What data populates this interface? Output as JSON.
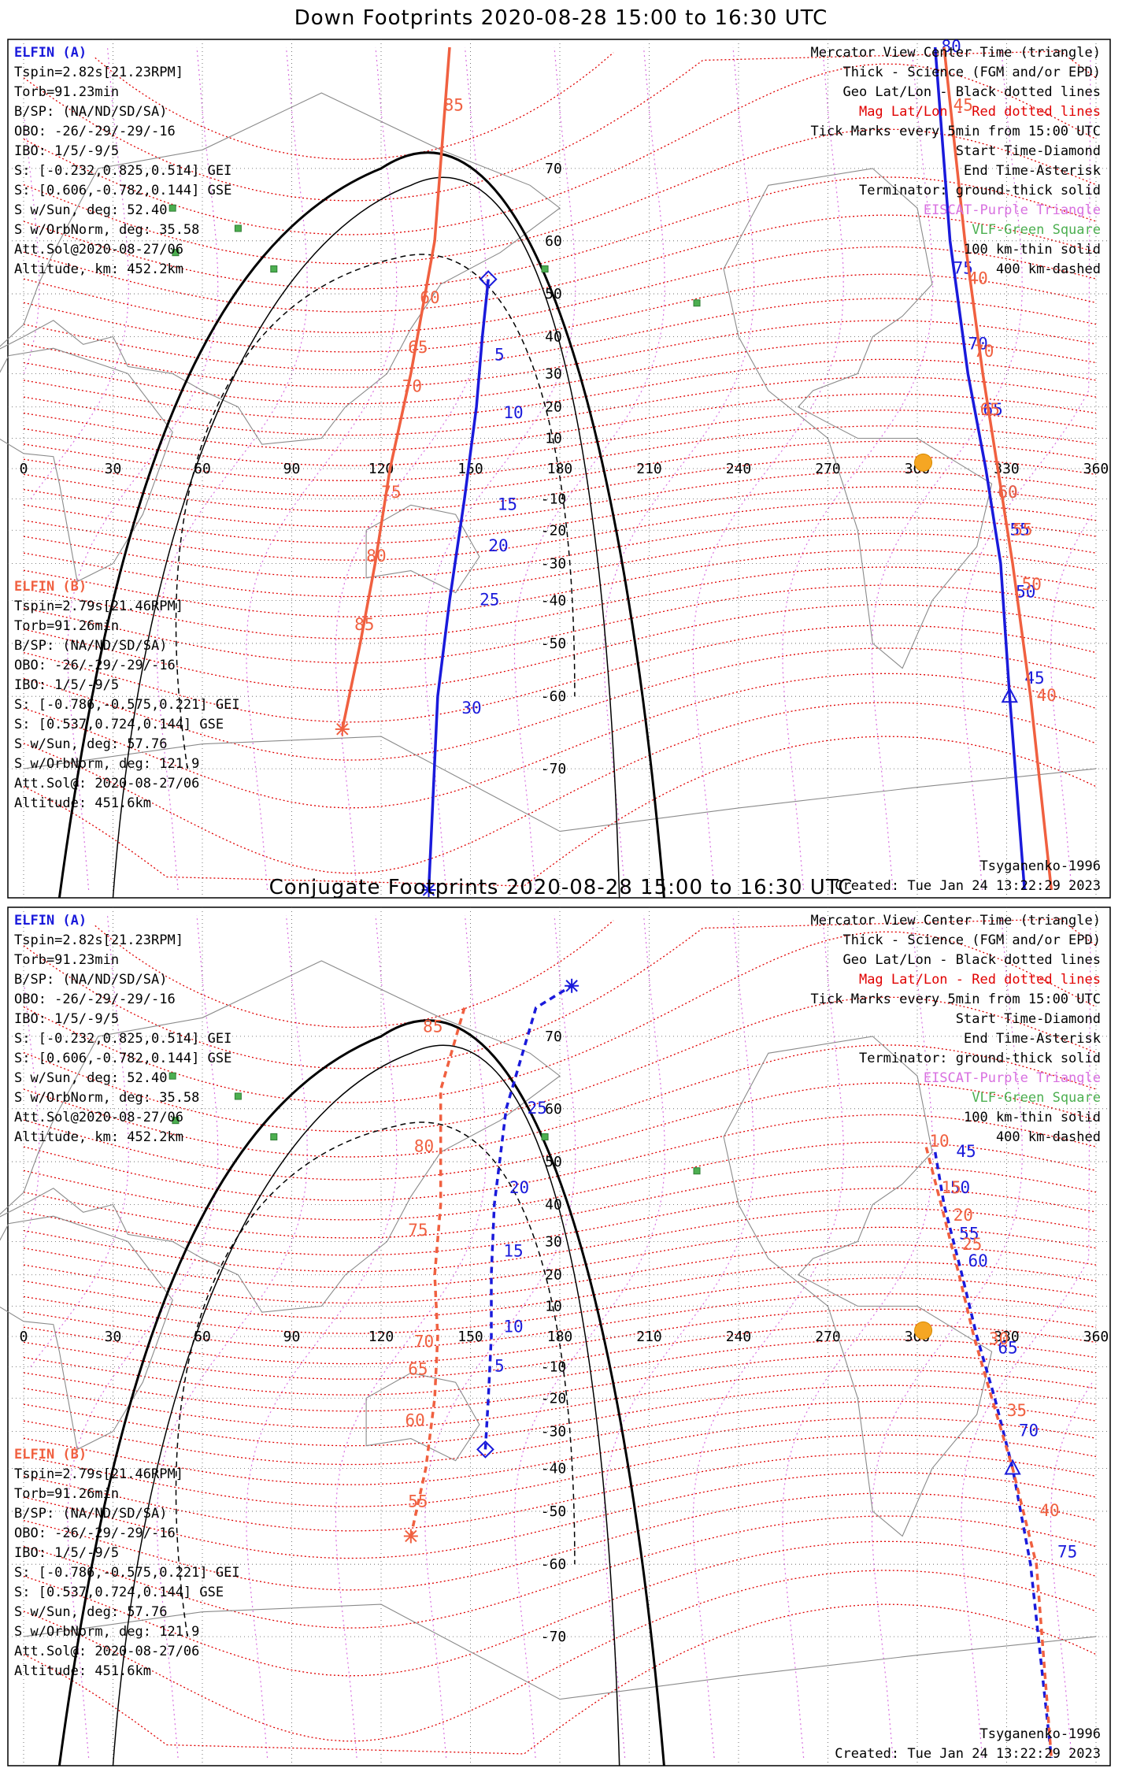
{
  "colors": {
    "probe_a": "#1a1adb",
    "probe_b": "#f06040",
    "mag_grid": "#e00000",
    "geo_grid": "#000000",
    "mer_pink": "#d870e0",
    "terminator": "#000000",
    "sun": "#f5a623",
    "vlf": "#4caf50"
  },
  "chart_data": [
    {
      "type": "scatter",
      "title": "Down Footprints 2020-08-28 15:00 to 16:30 UTC",
      "projection": "Mercator",
      "x_ticks": [
        "0",
        "30",
        "60",
        "90",
        "120",
        "150",
        "180",
        "210",
        "240",
        "270",
        "300",
        "330",
        "360"
      ],
      "y_ticks": [
        "70",
        "60",
        "50",
        "40",
        "30",
        "20",
        "10",
        "-10",
        "-20",
        "-30",
        "-40",
        "-50",
        "-60",
        "-70"
      ],
      "xlim": [
        0,
        360
      ],
      "ylim": [
        -80,
        80
      ],
      "header_left_a": {
        "name": "ELFIN (A)",
        "lines": [
          "Tspin=2.82s[21.23RPM]",
          "Torb=91.23min",
          "B/SP: (NA/ND/SD/SA)",
          "OBO: -26/-29/-29/-16",
          "IBO: 1/5/-9/5",
          "S: [-0.232,0.825,0.514] GEI",
          "S: [0.606,-0.782,0.144] GSE",
          "S w/Sun, deg: 52.40",
          "S w/OrbNorm, deg: 35.58",
          "Att.Sol@2020-08-27/06",
          "Altitude, km: 452.2km"
        ]
      },
      "header_left_b": {
        "name": "ELFIN (B)",
        "lines": [
          "Tspin=2.79s[21.46RPM]",
          "Torb=91.26min",
          "B/SP: (NA/ND/SD/SA)",
          "OBO: -26/-29/-29/-16",
          "IBO: 1/5/-9/5",
          "S: [-0.786,-0.575,0.221] GEI",
          "S: [0.537,0.724,0.144] GSE",
          "S w/Sun, deg: 57.76",
          "S w/OrbNorm, deg: 121.9",
          "Att.Sol@: 2020-08-27/06",
          "Altitude: 451.6km"
        ]
      },
      "legend_right": [
        "Mercator View Center Time (triangle)",
        "Thick - Science (FGM and/or EPD)",
        "Geo Lat/Lon - Black dotted lines",
        "Mag Lat/Lon - Red dotted lines",
        "Tick Marks every 5min from 15:00 UTC",
        "Start Time-Diamond",
        "End Time-Asterisk",
        "Terminator: ground-thick solid",
        "EISCAT-Purple Triangle",
        "VLF-Green Square",
        "100 km-thin solid",
        "400 km-dashed"
      ],
      "footer_left": "",
      "footer_right": [
        "Tsyganenko-1996",
        "Created: Tue Jan 24 13:22:29 2023"
      ],
      "series": [
        {
          "name": "ELFIN (A)",
          "style": "solid",
          "pass1": [
            [
              156,
              53
            ],
            [
              154,
              40
            ],
            [
              152,
              20
            ],
            [
              148,
              -10
            ],
            [
              143,
              -40
            ],
            [
              139,
              -60
            ],
            [
              136,
              -80
            ]
          ],
          "pass2": [
            [
              306,
              80
            ],
            [
              311,
              60
            ],
            [
              317,
              30
            ],
            [
              323,
              0
            ],
            [
              328,
              -30
            ],
            [
              331,
              -60
            ],
            [
              336,
              -80
            ]
          ],
          "ticks1": [
            [
              "5",
              157,
              35
            ],
            [
              "10",
              160,
              18
            ],
            [
              "15",
              158,
              -12
            ],
            [
              "20",
              155,
              -25
            ],
            [
              "25",
              152,
              -40
            ],
            [
              "30",
              146,
              -62
            ]
          ],
          "ticks2": [
            [
              "80",
              307,
              80
            ],
            [
              "75",
              311,
              55
            ],
            [
              "70",
              316,
              38
            ],
            [
              "65",
              321,
              19
            ],
            [
              "60",
              326,
              -8
            ],
            [
              "55",
              330,
              -20
            ],
            [
              "50",
              332,
              -38
            ],
            [
              "45",
              335,
              -57
            ]
          ]
        },
        {
          "name": "ELFIN (B)",
          "style": "solid",
          "pass1": [
            [
              143,
              80
            ],
            [
              138,
              60
            ],
            [
              130,
              30
            ],
            [
              123,
              0
            ],
            [
              118,
              -30
            ],
            [
              113,
              -50
            ],
            [
              107,
              -65
            ]
          ],
          "pass2": [
            [
              309,
              80
            ],
            [
              316,
              60
            ],
            [
              322,
              30
            ],
            [
              327,
              0
            ],
            [
              332,
              -30
            ],
            [
              338,
              -60
            ],
            [
              345,
              -80
            ]
          ],
          "ticks1": [
            [
              "85",
              140,
              76
            ],
            [
              "60",
              132,
              49
            ],
            [
              "65",
              128,
              37
            ],
            [
              "70",
              126,
              26
            ],
            [
              "75",
              119,
              -8
            ],
            [
              "80",
              114,
              -28
            ],
            [
              "85",
              110,
              -46
            ]
          ],
          "ticks2": [
            [
              "45",
              311,
              76
            ],
            [
              "40",
              316,
              53
            ],
            [
              "70",
              318,
              36
            ],
            [
              "65",
              320,
              19
            ],
            [
              "60",
              326,
              -8
            ],
            [
              "55",
              331,
              -20
            ],
            [
              "50",
              334,
              -36
            ],
            [
              "40",
              339,
              -60
            ]
          ]
        }
      ]
    },
    {
      "type": "scatter",
      "title": "Conjugate Footprints 2020-08-28 15:00 to 16:30 UTC",
      "projection": "Mercator",
      "x_ticks": [
        "0",
        "30",
        "60",
        "90",
        "120",
        "150",
        "180",
        "210",
        "240",
        "270",
        "300",
        "330",
        "360"
      ],
      "y_ticks": [
        "70",
        "60",
        "50",
        "40",
        "30",
        "20",
        "10",
        "-10",
        "-20",
        "-30",
        "-40",
        "-50",
        "-60",
        "-70"
      ],
      "xlim": [
        0,
        360
      ],
      "ylim": [
        -80,
        80
      ],
      "header_left_a": {
        "name": "ELFIN (A)",
        "lines": [
          "Tspin=2.82s[21.23RPM]",
          "Torb=91.23min",
          "B/SP: (NA/ND/SD/SA)",
          "OBO: -26/-29/-29/-16",
          "IBO: 1/5/-9/5",
          "S: [-0.232,0.825,0.514] GEI",
          "S: [0.606,-0.782,0.144] GSE",
          "S w/Sun, deg: 52.40",
          "S w/OrbNorm, deg: 35.58",
          "Att.Sol@2020-08-27/06",
          "Altitude, km: 452.2km"
        ]
      },
      "header_left_b": {
        "name": "ELFIN (B)",
        "lines": [
          "Tspin=2.79s[21.46RPM]",
          "Torb=91.26min",
          "B/SP: (NA/ND/SD/SA)",
          "OBO: -26/-29/-29/-16",
          "IBO: 1/5/-9/5",
          "S: [-0.786,-0.575,0.221] GEI",
          "S: [0.537,0.724,0.144] GSE",
          "S w/Sun, deg: 57.76",
          "S w/OrbNorm, deg: 121.9",
          "Att.Sol@: 2020-08-27/06",
          "Altitude: 451.6km"
        ]
      },
      "legend_right": [
        "Mercator View Center Time (triangle)",
        "Thick - Science (FGM and/or EPD)",
        "Geo Lat/Lon - Black dotted lines",
        "Mag Lat/Lon - Red dotted lines",
        "Tick Marks every 5min from 15:00 UTC",
        "Start Time-Diamond",
        "End Time-Asterisk",
        "Terminator: ground-thick solid",
        "EISCAT-Purple Triangle",
        "VLF-Green Square",
        "100 km-thin solid",
        "400 km-dashed"
      ],
      "footer_right": [
        "Tsyganenko-1996",
        "Created: Tue Jan 24 13:22:29 2023"
      ],
      "series": [
        {
          "name": "ELFIN (A)",
          "style": "dashed",
          "pass1": [
            [
              155,
              -35
            ],
            [
              156,
              -20
            ],
            [
              157,
              0
            ],
            [
              157,
              20
            ],
            [
              158,
              40
            ],
            [
              162,
              60
            ],
            [
              172,
              73
            ],
            [
              184,
              75
            ]
          ],
          "pass2": [
            [
              306,
              52
            ],
            [
              309,
              40
            ],
            [
              315,
              20
            ],
            [
              320,
              0
            ],
            [
              326,
              -20
            ],
            [
              332,
              -40
            ],
            [
              338,
              -60
            ],
            [
              345,
              -80
            ]
          ],
          "ticks1": [
            [
              "5",
              157,
              -10
            ],
            [
              "10",
              160,
              3
            ],
            [
              "15",
              160,
              27
            ],
            [
              "20",
              162,
              44
            ],
            [
              "25",
              168,
              60
            ]
          ],
          "ticks2": [
            [
              "45",
              312,
              52
            ],
            [
              "50",
              310,
              44
            ],
            [
              "55",
              313,
              32
            ],
            [
              "60",
              316,
              24
            ],
            [
              "65",
              326,
              -4
            ],
            [
              "70",
              333,
              -30
            ],
            [
              "75",
              346,
              -58
            ]
          ]
        },
        {
          "name": "ELFIN (B)",
          "style": "dashed",
          "pass1": [
            [
              148,
              73
            ],
            [
              140,
              63
            ],
            [
              140,
              40
            ],
            [
              138,
              20
            ],
            [
              139,
              0
            ],
            [
              138,
              -20
            ],
            [
              135,
              -40
            ],
            [
              130,
              -55
            ]
          ],
          "pass2": [
            [
              303,
              53
            ],
            [
              308,
              40
            ],
            [
              314,
              20
            ],
            [
              319,
              0
            ],
            [
              325,
              -20
            ],
            [
              332,
              -40
            ],
            [
              340,
              -60
            ],
            [
              345,
              -80
            ]
          ],
          "ticks1": [
            [
              "85",
              133,
              71
            ],
            [
              "80",
              130,
              53
            ],
            [
              "75",
              128,
              33
            ],
            [
              "70",
              130,
              -2
            ],
            [
              "65",
              128,
              -11
            ],
            [
              "60",
              127,
              -27
            ],
            [
              "55",
              128,
              -48
            ]
          ],
          "ticks2": [
            [
              "10",
              303,
              54
            ],
            [
              "15",
              307,
              44
            ],
            [
              "20",
              311,
              37
            ],
            [
              "25",
              314,
              29
            ],
            [
              "30",
              323,
              -1
            ],
            [
              "35",
              329,
              -24
            ],
            [
              "40",
              340,
              -50
            ]
          ]
        }
      ]
    }
  ]
}
